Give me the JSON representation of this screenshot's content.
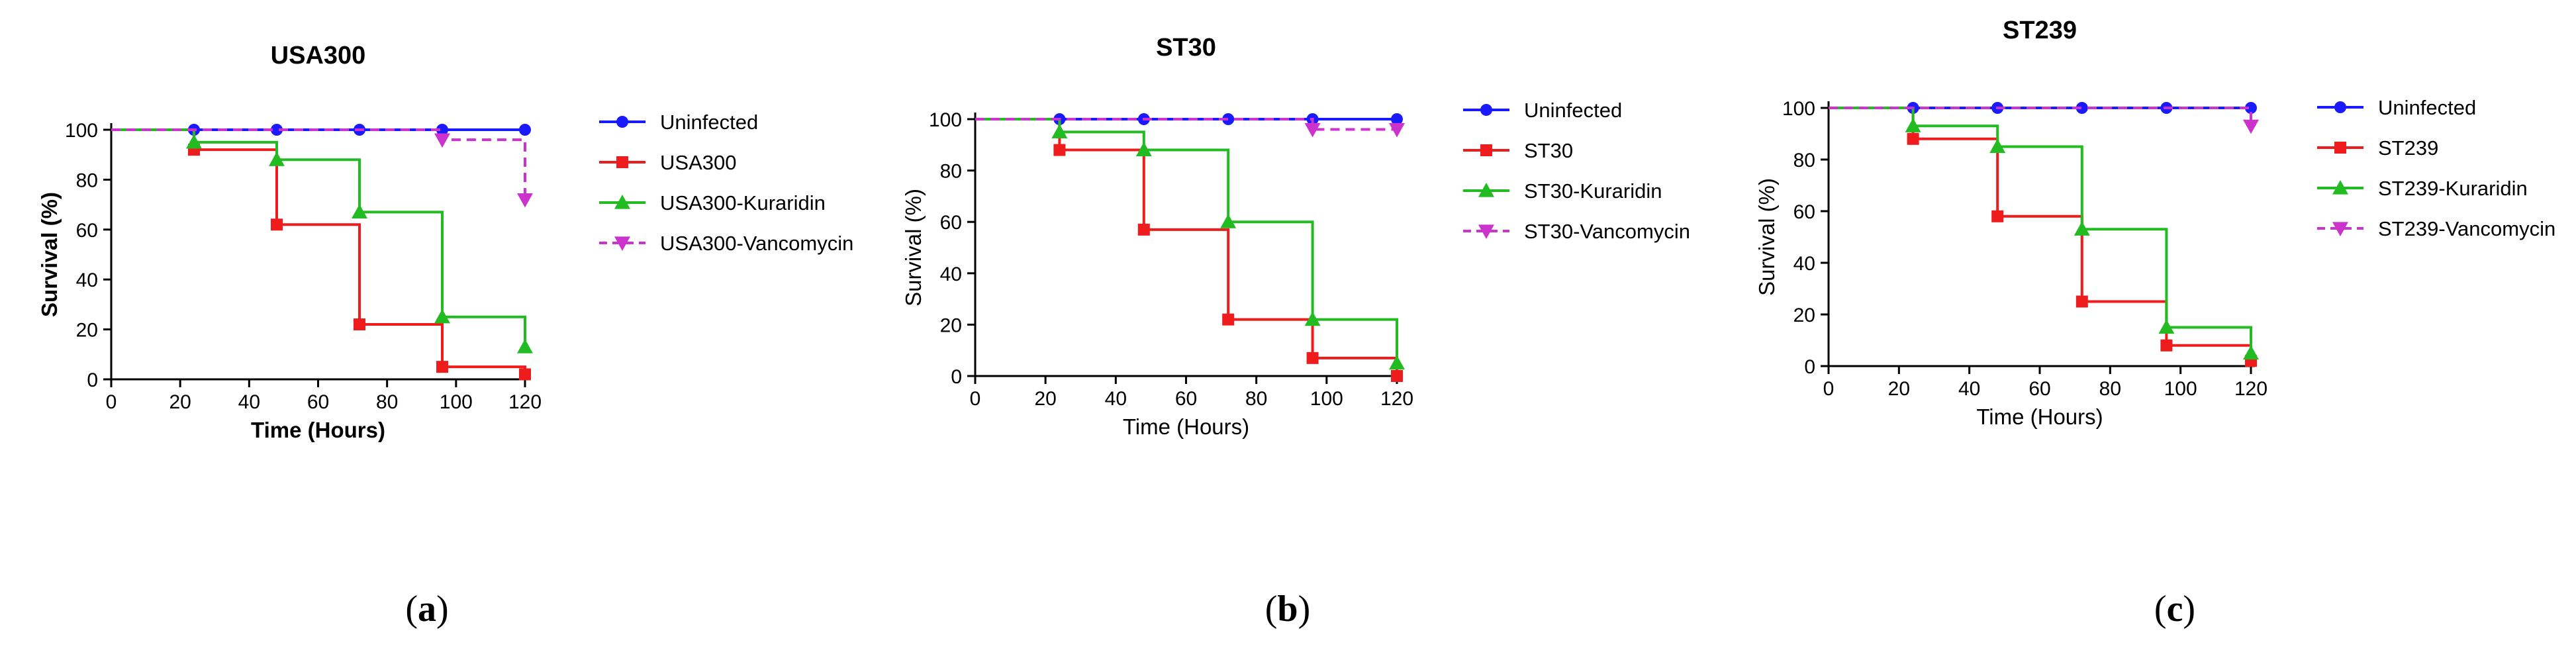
{
  "chart_data": [
    {
      "type": "line",
      "subtype": "survival-step",
      "title": "USA300",
      "xlabel": "Time (Hours)",
      "ylabel": "Survival (%)",
      "xlim": [
        0,
        120
      ],
      "ylim": [
        0,
        100
      ],
      "xticks": [
        0,
        20,
        40,
        60,
        80,
        100,
        120
      ],
      "yticks": [
        0,
        20,
        40,
        60,
        80,
        100
      ],
      "bold_axis_labels": true,
      "legend_position": "right",
      "series": [
        {
          "name": "Uninfected",
          "color": "#1a1aff",
          "marker": "circle",
          "style": "solid",
          "x": [
            0,
            24,
            48,
            72,
            96,
            120
          ],
          "y": [
            100,
            100,
            100,
            100,
            100,
            100
          ]
        },
        {
          "name": "USA300",
          "color": "#ee1c1c",
          "marker": "square",
          "style": "solid",
          "x": [
            0,
            24,
            48,
            72,
            96,
            120
          ],
          "y": [
            100,
            92,
            62,
            22,
            5,
            2
          ]
        },
        {
          "name": "USA300-Kuraridin",
          "color": "#22bb22",
          "marker": "triangle-up",
          "style": "solid",
          "x": [
            0,
            24,
            48,
            72,
            96,
            120
          ],
          "y": [
            100,
            95,
            88,
            67,
            25,
            13
          ]
        },
        {
          "name": "USA300-Vancomycin",
          "color": "#cc33cc",
          "marker": "triangle-down",
          "style": "dashed",
          "x": [
            0,
            96,
            120
          ],
          "y": [
            100,
            96,
            72
          ]
        }
      ]
    },
    {
      "type": "line",
      "subtype": "survival-step",
      "title": "ST30",
      "xlabel": "Time (Hours)",
      "ylabel": "Survival (%)",
      "xlim": [
        0,
        120
      ],
      "ylim": [
        0,
        100
      ],
      "xticks": [
        0,
        20,
        40,
        60,
        80,
        100,
        120
      ],
      "yticks": [
        0,
        20,
        40,
        60,
        80,
        100
      ],
      "bold_axis_labels": false,
      "legend_position": "right",
      "series": [
        {
          "name": "Uninfected",
          "color": "#1a1aff",
          "marker": "circle",
          "style": "solid",
          "x": [
            0,
            24,
            48,
            72,
            96,
            120
          ],
          "y": [
            100,
            100,
            100,
            100,
            100,
            100
          ]
        },
        {
          "name": "ST30",
          "color": "#ee1c1c",
          "marker": "square",
          "style": "solid",
          "x": [
            0,
            24,
            48,
            72,
            96,
            120
          ],
          "y": [
            100,
            88,
            57,
            22,
            7,
            0
          ]
        },
        {
          "name": "ST30-Kuraridin",
          "color": "#22bb22",
          "marker": "triangle-up",
          "style": "solid",
          "x": [
            0,
            24,
            48,
            72,
            96,
            120
          ],
          "y": [
            100,
            95,
            88,
            60,
            22,
            5
          ]
        },
        {
          "name": "ST30-Vancomycin",
          "color": "#cc33cc",
          "marker": "triangle-down",
          "style": "dashed",
          "x": [
            0,
            96,
            120
          ],
          "y": [
            100,
            96,
            96
          ]
        }
      ]
    },
    {
      "type": "line",
      "subtype": "survival-step",
      "title": "ST239",
      "xlabel": "Time (Hours)",
      "ylabel": "Survival (%)",
      "xlim": [
        0,
        120
      ],
      "ylim": [
        0,
        100
      ],
      "xticks": [
        0,
        20,
        40,
        60,
        80,
        100,
        120
      ],
      "yticks": [
        0,
        20,
        40,
        60,
        80,
        100
      ],
      "bold_axis_labels": false,
      "legend_position": "right",
      "series": [
        {
          "name": "Uninfected",
          "color": "#1a1aff",
          "marker": "circle",
          "style": "solid",
          "x": [
            0,
            24,
            48,
            72,
            96,
            120
          ],
          "y": [
            100,
            100,
            100,
            100,
            100,
            100
          ]
        },
        {
          "name": "ST239",
          "color": "#ee1c1c",
          "marker": "square",
          "style": "solid",
          "x": [
            0,
            24,
            48,
            72,
            96,
            120
          ],
          "y": [
            100,
            88,
            58,
            25,
            8,
            2
          ]
        },
        {
          "name": "ST239-Kuraridin",
          "color": "#22bb22",
          "marker": "triangle-up",
          "style": "solid",
          "x": [
            0,
            24,
            48,
            72,
            96,
            120
          ],
          "y": [
            100,
            93,
            85,
            53,
            15,
            5
          ]
        },
        {
          "name": "ST239-Vancomycin",
          "color": "#cc33cc",
          "marker": "triangle-down",
          "style": "dashed",
          "x": [
            0,
            120
          ],
          "y": [
            100,
            93
          ]
        }
      ]
    }
  ],
  "panel_labels": [
    "a",
    "b",
    "c"
  ]
}
